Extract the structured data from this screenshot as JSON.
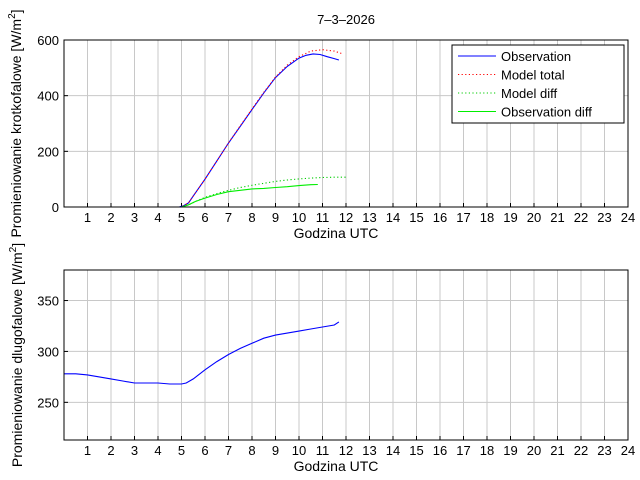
{
  "title": "7–3–2026",
  "chart_data": [
    {
      "type": "line",
      "title": "7–3–2026",
      "xlabel": "Godzina UTC",
      "ylabel": "Promieniowanie krotkofalowe [W/m",
      "ylabel_sup": "2",
      "ylabel_end": "]",
      "xlim": [
        0,
        24
      ],
      "ylim": [
        0,
        600
      ],
      "xticks": [
        "1",
        "2",
        "3",
        "4",
        "5",
        "6",
        "7",
        "8",
        "9",
        "10",
        "11",
        "12",
        "13",
        "14",
        "15",
        "16",
        "17",
        "18",
        "19",
        "20",
        "21",
        "22",
        "23",
        "24"
      ],
      "yticks": [
        "0",
        "200",
        "400",
        "600"
      ],
      "grid": true,
      "legend_position": "top-right",
      "series": [
        {
          "name": "Observation",
          "color": "#0000ff",
          "style": "solid",
          "x": [
            0,
            4.9,
            5.1,
            5.3,
            5.5,
            6,
            6.5,
            7,
            7.5,
            8,
            8.5,
            9,
            9.5,
            10,
            10.3,
            10.6,
            10.9,
            11.2,
            11.5,
            11.7
          ],
          "y": [
            0,
            0,
            5,
            15,
            40,
            100,
            165,
            230,
            290,
            350,
            410,
            465,
            505,
            535,
            545,
            550,
            548,
            540,
            533,
            528
          ]
        },
        {
          "name": "Model total",
          "color": "#ff0000",
          "style": "dotted",
          "x": [
            0,
            5,
            5.3,
            5.5,
            6,
            6.5,
            7,
            7.5,
            8,
            8.5,
            9,
            9.5,
            10,
            10.5,
            11,
            11.5,
            11.8
          ],
          "y": [
            0,
            0,
            15,
            40,
            100,
            165,
            230,
            292,
            352,
            412,
            467,
            510,
            540,
            560,
            565,
            560,
            552
          ]
        },
        {
          "name": "Model diff",
          "color": "#00cc00",
          "style": "dotted",
          "x": [
            0,
            5,
            5.3,
            5.6,
            6,
            6.5,
            7,
            7.5,
            8,
            8.5,
            9,
            9.5,
            10,
            10.5,
            11,
            11.5,
            12
          ],
          "y": [
            0,
            0,
            8,
            20,
            35,
            48,
            60,
            70,
            78,
            85,
            92,
            97,
            101,
            104,
            106,
            107,
            107
          ]
        },
        {
          "name": "Observation diff",
          "color": "#00ee00",
          "style": "solid",
          "x": [
            0,
            5,
            5.3,
            5.6,
            6,
            6.5,
            7,
            7.5,
            8,
            8.5,
            9,
            9.5,
            10,
            10.5,
            10.8
          ],
          "y": [
            0,
            0,
            8,
            20,
            32,
            45,
            55,
            60,
            65,
            67,
            70,
            73,
            77,
            80,
            81
          ]
        }
      ]
    },
    {
      "type": "line",
      "title": "",
      "xlabel": "Godzina UTC",
      "ylabel": "Promieniowanie dlugofalowe [W/m",
      "ylabel_sup": "2",
      "ylabel_end": "]",
      "xlim": [
        0,
        24
      ],
      "ylim": [
        213,
        380
      ],
      "xticks": [
        "1",
        "2",
        "3",
        "4",
        "5",
        "6",
        "7",
        "8",
        "9",
        "10",
        "11",
        "12",
        "13",
        "14",
        "15",
        "16",
        "17",
        "18",
        "19",
        "20",
        "21",
        "22",
        "23",
        "24"
      ],
      "yticks": [
        "250",
        "300",
        "350"
      ],
      "grid": true,
      "series": [
        {
          "color": "#0000ff",
          "style": "solid",
          "x": [
            0,
            0.5,
            1,
            1.5,
            2,
            2.5,
            3,
            3.5,
            4,
            4.5,
            5,
            5.2,
            5.5,
            6,
            6.5,
            7,
            7.5,
            8,
            8.5,
            9,
            9.5,
            10,
            10.5,
            11,
            11.5,
            11.7
          ],
          "y": [
            278,
            278,
            277,
            275,
            273,
            271,
            269,
            269,
            269,
            268,
            268,
            269,
            273,
            282,
            290,
            297,
            303,
            308,
            313,
            316,
            318,
            320,
            322,
            324,
            326,
            329
          ]
        }
      ]
    }
  ]
}
